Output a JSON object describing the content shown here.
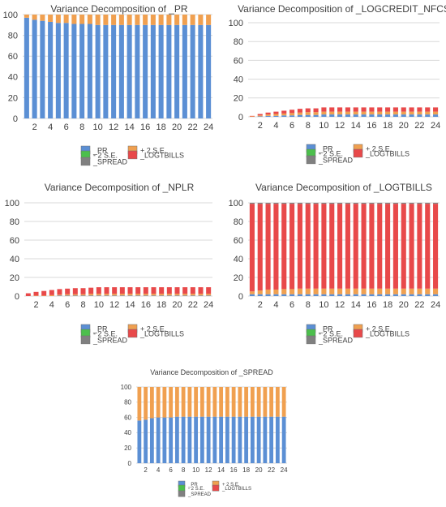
{
  "colors": {
    "PR": "#5b8fd4",
    "PLUS2SE": "#f0a050",
    "MINUS2SE": "#4cbf4c",
    "LOGTBILLS": "#e8494a",
    "SPREAD": "#808080",
    "grid": "#d9d9d9",
    "text": "#404040"
  },
  "legend": {
    "pr": "_PR",
    "plus2se": "+ 2 S.E.",
    "minus2se": "- 2 S.E.",
    "logtbills": "_LOGTBILLS",
    "spread": "_SPREAD"
  },
  "chart_data": [
    {
      "type": "bar",
      "title": "Variance Decomposition of _PR",
      "x": [
        1,
        2,
        3,
        4,
        5,
        6,
        7,
        8,
        9,
        10,
        11,
        12,
        13,
        14,
        15,
        16,
        17,
        18,
        19,
        20,
        21,
        22,
        23,
        24
      ],
      "x_tick_labels": [
        "2",
        "4",
        "6",
        "8",
        "10",
        "12",
        "14",
        "16",
        "18",
        "20",
        "22",
        "24"
      ],
      "ylim": [
        0,
        100
      ],
      "y_ticks": [
        0,
        20,
        40,
        60,
        80,
        100
      ],
      "grid": true,
      "stacked": true,
      "series": [
        {
          "key": "PR",
          "values": [
            97,
            95,
            94,
            93,
            92,
            92,
            91,
            91,
            91,
            90,
            90,
            90,
            90,
            90,
            90,
            90,
            90,
            90,
            90,
            90,
            90,
            90,
            90,
            90
          ]
        },
        {
          "key": "PLUS2SE",
          "values": [
            3,
            5,
            6,
            7,
            8,
            8,
            9,
            9,
            9,
            10,
            10,
            10,
            10,
            10,
            10,
            10,
            10,
            10,
            10,
            10,
            10,
            10,
            10,
            10
          ]
        }
      ]
    },
    {
      "type": "bar",
      "title": "Variance Decomposition of _LOGCREDIT_NFCS",
      "x": [
        1,
        2,
        3,
        4,
        5,
        6,
        7,
        8,
        9,
        10,
        11,
        12,
        13,
        14,
        15,
        16,
        17,
        18,
        19,
        20,
        21,
        22,
        23,
        24
      ],
      "x_tick_labels": [
        "2",
        "4",
        "6",
        "8",
        "10",
        "12",
        "14",
        "16",
        "18",
        "20",
        "22",
        "24"
      ],
      "ylim": [
        0,
        100
      ],
      "y_ticks": [
        0,
        20,
        40,
        60,
        80,
        100
      ],
      "grid": true,
      "stacked": true,
      "series": [
        {
          "key": "PR",
          "values": [
            0,
            0.5,
            1,
            1,
            1.5,
            1.5,
            2,
            2,
            2,
            2.5,
            2.5,
            2.5,
            2.5,
            2.5,
            2.5,
            2.5,
            2.5,
            2.5,
            2.5,
            2.5,
            2.5,
            2.5,
            2.5,
            2.5
          ]
        },
        {
          "key": "PLUS2SE",
          "values": [
            0.5,
            1,
            1.5,
            2,
            2,
            2.5,
            2.5,
            3,
            3,
            3,
            3,
            3,
            3,
            3,
            3,
            3,
            3,
            3,
            3,
            3,
            3,
            3,
            3,
            3
          ]
        },
        {
          "key": "LOGTBILLS",
          "values": [
            0.5,
            1.5,
            2,
            2.5,
            3,
            3.5,
            4,
            4,
            4,
            4.5,
            4.5,
            4.5,
            4.5,
            4.5,
            4.5,
            4.5,
            4.5,
            4.5,
            4.5,
            4.5,
            4.5,
            4.5,
            4.5,
            4.5
          ]
        }
      ]
    },
    {
      "type": "bar",
      "title": "Variance Decomposition of _NPLR",
      "x": [
        1,
        2,
        3,
        4,
        5,
        6,
        7,
        8,
        9,
        10,
        11,
        12,
        13,
        14,
        15,
        16,
        17,
        18,
        19,
        20,
        21,
        22,
        23,
        24
      ],
      "x_tick_labels": [
        "2",
        "4",
        "6",
        "8",
        "10",
        "12",
        "14",
        "16",
        "18",
        "20",
        "22",
        "24"
      ],
      "ylim": [
        0,
        100
      ],
      "y_ticks": [
        0,
        20,
        40,
        60,
        80,
        100
      ],
      "grid": true,
      "stacked": true,
      "series": [
        {
          "key": "PR",
          "values": [
            0,
            0,
            0,
            0,
            0.5,
            0.5,
            0.5,
            0.5,
            0.5,
            0.5,
            0.5,
            0.5,
            0.5,
            0.5,
            0.5,
            0.5,
            0.5,
            0.5,
            0.5,
            0.5,
            0.5,
            0.5,
            0.5,
            0.5
          ]
        },
        {
          "key": "PLUS2SE",
          "values": [
            0,
            0.5,
            0.5,
            1,
            1,
            1.5,
            1.5,
            1.5,
            2,
            2,
            2,
            2,
            2,
            2,
            2,
            2,
            2,
            2,
            2,
            2,
            2,
            2,
            2,
            2
          ]
        },
        {
          "key": "LOGTBILLS",
          "values": [
            3,
            4,
            5,
            5.5,
            6,
            6,
            6.5,
            6.5,
            6.5,
            7,
            7,
            7,
            7,
            7,
            7,
            7,
            7,
            7,
            7,
            7,
            7,
            7,
            7,
            7
          ]
        }
      ]
    },
    {
      "type": "bar",
      "title": "Variance Decomposition of _LOGTBILLS",
      "x": [
        1,
        2,
        3,
        4,
        5,
        6,
        7,
        8,
        9,
        10,
        11,
        12,
        13,
        14,
        15,
        16,
        17,
        18,
        19,
        20,
        21,
        22,
        23,
        24
      ],
      "x_tick_labels": [
        "2",
        "4",
        "6",
        "8",
        "10",
        "12",
        "14",
        "16",
        "18",
        "20",
        "22",
        "24"
      ],
      "ylim": [
        0,
        100
      ],
      "y_ticks": [
        0,
        20,
        40,
        60,
        80,
        100
      ],
      "grid": true,
      "stacked": true,
      "series": [
        {
          "key": "PR",
          "values": [
            2,
            2,
            2,
            2,
            2,
            2,
            2,
            2,
            2,
            2,
            2,
            2,
            2,
            2,
            2,
            2,
            2,
            2,
            2,
            2,
            2,
            2,
            2,
            2
          ]
        },
        {
          "key": "PLUS2SE",
          "values": [
            3,
            4,
            5,
            5,
            5.5,
            5.5,
            6,
            6,
            6,
            6,
            6,
            6,
            6,
            6,
            6,
            6,
            6,
            6,
            6,
            6,
            6,
            6,
            6,
            6
          ]
        },
        {
          "key": "LOGTBILLS",
          "values": [
            94,
            93,
            92,
            92,
            91.5,
            91.5,
            91,
            91,
            91,
            91,
            91,
            91,
            91,
            91,
            91,
            91,
            91,
            91,
            91,
            91,
            91,
            91,
            91,
            91
          ]
        },
        {
          "key": "SPREAD",
          "values": [
            1,
            1,
            1,
            1,
            1,
            1,
            1,
            1,
            1,
            1,
            1,
            1,
            1,
            1,
            1,
            1,
            1,
            1,
            1,
            1,
            1,
            1,
            1,
            1
          ]
        }
      ]
    },
    {
      "type": "bar",
      "title": "Variance Decomposition of _SPREAD",
      "x": [
        1,
        2,
        3,
        4,
        5,
        6,
        7,
        8,
        9,
        10,
        11,
        12,
        13,
        14,
        15,
        16,
        17,
        18,
        19,
        20,
        21,
        22,
        23,
        24
      ],
      "x_tick_labels": [
        "2",
        "4",
        "6",
        "8",
        "10",
        "12",
        "14",
        "16",
        "18",
        "20",
        "22",
        "24"
      ],
      "ylim": [
        0,
        100
      ],
      "y_ticks": [
        0,
        20,
        40,
        60,
        80,
        100
      ],
      "grid": true,
      "stacked": true,
      "series": [
        {
          "key": "PR",
          "values": [
            56,
            57,
            59,
            60,
            60,
            60,
            61,
            61,
            61,
            61,
            61,
            61,
            61,
            61,
            61,
            61,
            61,
            61,
            61,
            61,
            61,
            61,
            61,
            61
          ]
        },
        {
          "key": "PLUS2SE",
          "values": [
            44,
            43,
            41,
            40,
            40,
            40,
            39,
            39,
            39,
            39,
            39,
            39,
            39,
            39,
            39,
            39,
            39,
            39,
            39,
            39,
            39,
            39,
            39,
            39
          ]
        }
      ]
    }
  ]
}
